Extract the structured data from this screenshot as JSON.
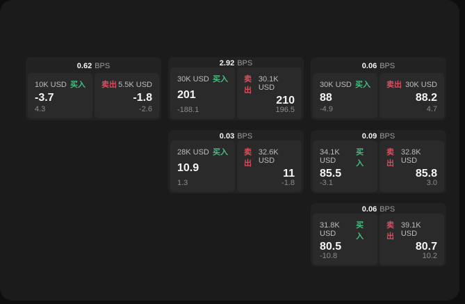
{
  "labels": {
    "bps": "BPS",
    "buy": "买入",
    "sell": "卖出"
  },
  "colors": {
    "window_bg": "#1b1b1b",
    "card_bg": "#222222",
    "pane_bg": "#2a2a2a",
    "buy_green": "#45bd80",
    "sell_red": "#d8505e"
  },
  "cards": [
    {
      "bps": "0.62",
      "buy_amount": "10K USD",
      "buy_value": "-3.7",
      "buy_sub": "4.3",
      "sell_amount": "5.5K USD",
      "sell_value": "-1.8",
      "sell_sub": "-2.6"
    },
    {
      "bps": "2.92",
      "buy_amount": "30K USD",
      "buy_value": "201",
      "buy_sub": "-188.1",
      "sell_amount": "30.1K USD",
      "sell_value": "210",
      "sell_sub": "196.5"
    },
    {
      "bps": "0.06",
      "buy_amount": "30K USD",
      "buy_value": "88",
      "buy_sub": "-4.9",
      "sell_amount": "30K USD",
      "sell_value": "88.2",
      "sell_sub": "4.7"
    },
    {
      "bps": "0.03",
      "buy_amount": "28K USD",
      "buy_value": "10.9",
      "buy_sub": "1.3",
      "sell_amount": "32.6K USD",
      "sell_value": "11",
      "sell_sub": "-1.8"
    },
    {
      "bps": "0.09",
      "buy_amount": "34.1K USD",
      "buy_value": "85.5",
      "buy_sub": "-3.1",
      "sell_amount": "32.8K USD",
      "sell_value": "85.8",
      "sell_sub": "3.0"
    },
    {
      "bps": "0.06",
      "buy_amount": "31.8K USD",
      "buy_value": "80.5",
      "buy_sub": "-10.8",
      "sell_amount": "39.1K USD",
      "sell_value": "80.7",
      "sell_sub": "10.2"
    }
  ]
}
